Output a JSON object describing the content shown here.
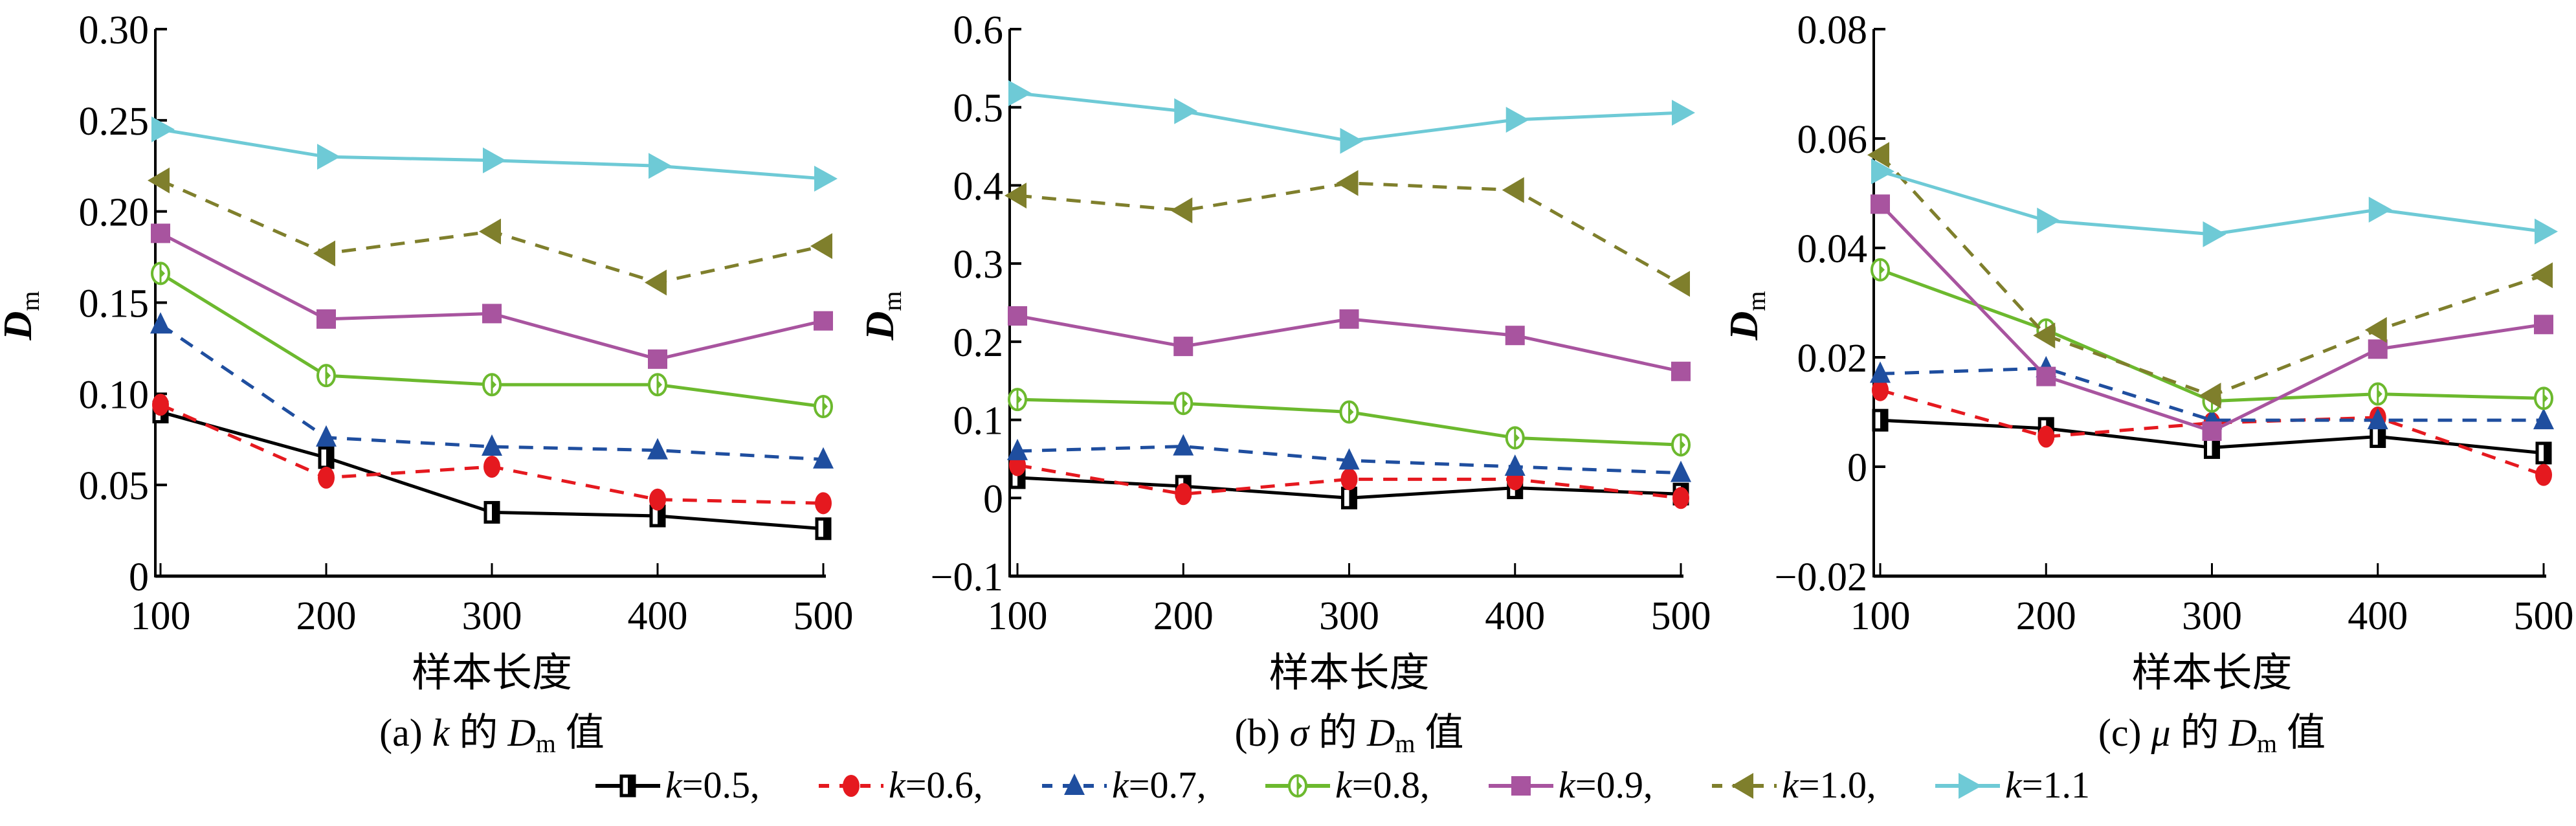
{
  "chart_data": [
    {
      "type": "line",
      "panel": "a",
      "caption_prefix": "(a)",
      "caption_param": "k",
      "caption_mid": "的",
      "caption_D": "D",
      "caption_sub": "m",
      "caption_suffix": "值",
      "xlabel": "样本长度",
      "ylabel_main": "D",
      "ylabel_sub": "m",
      "x": [
        100,
        200,
        300,
        400,
        500
      ],
      "xticks": [
        "100",
        "200",
        "300",
        "400",
        "500"
      ],
      "ylim": [
        0,
        0.3
      ],
      "yticks": [
        0,
        0.05,
        0.1,
        0.15,
        0.2,
        0.25,
        0.3
      ],
      "ytick_labels": [
        "0",
        "0.05",
        "0.10",
        "0.15",
        "0.20",
        "0.25",
        "0.30"
      ],
      "grid": false,
      "series": [
        {
          "name": "k=0.5",
          "values": [
            0.09,
            0.065,
            0.035,
            0.033,
            0.026
          ]
        },
        {
          "name": "k=0.6",
          "values": [
            0.094,
            0.054,
            0.06,
            0.042,
            0.04
          ]
        },
        {
          "name": "k=0.7",
          "values": [
            0.138,
            0.076,
            0.071,
            0.069,
            0.064
          ]
        },
        {
          "name": "k=0.8",
          "values": [
            0.166,
            0.11,
            0.105,
            0.105,
            0.093
          ]
        },
        {
          "name": "k=0.9",
          "values": [
            0.188,
            0.141,
            0.144,
            0.119,
            0.14
          ]
        },
        {
          "name": "k=1.0",
          "values": [
            0.217,
            0.177,
            0.189,
            0.161,
            0.181
          ]
        },
        {
          "name": "k=1.1",
          "values": [
            0.245,
            0.23,
            0.228,
            0.225,
            0.218
          ]
        }
      ]
    },
    {
      "type": "line",
      "panel": "b",
      "caption_prefix": "(b)",
      "caption_param": "σ",
      "caption_mid": "的",
      "caption_D": "D",
      "caption_sub": "m",
      "caption_suffix": "值",
      "xlabel": "样本长度",
      "ylabel_main": "D",
      "ylabel_sub": "m",
      "x": [
        100,
        200,
        300,
        400,
        500
      ],
      "xticks": [
        "100",
        "200",
        "300",
        "400",
        "500"
      ],
      "ylim": [
        -0.1,
        0.6
      ],
      "yticks": [
        -0.1,
        0,
        0.1,
        0.2,
        0.3,
        0.4,
        0.5,
        0.6
      ],
      "ytick_labels": [
        "−0.1",
        "0",
        "0.1",
        "0.2",
        "0.3",
        "0.4",
        "0.5",
        "0.6"
      ],
      "grid": false,
      "series": [
        {
          "name": "k=0.5",
          "values": [
            0.026,
            0.015,
            0.0,
            0.013,
            0.005
          ]
        },
        {
          "name": "k=0.6",
          "values": [
            0.042,
            0.005,
            0.024,
            0.024,
            0.0
          ]
        },
        {
          "name": "k=0.7",
          "values": [
            0.06,
            0.066,
            0.048,
            0.04,
            0.032
          ]
        },
        {
          "name": "k=0.8",
          "values": [
            0.126,
            0.121,
            0.11,
            0.077,
            0.068
          ]
        },
        {
          "name": "k=0.9",
          "values": [
            0.233,
            0.194,
            0.229,
            0.208,
            0.162
          ]
        },
        {
          "name": "k=1.0",
          "values": [
            0.387,
            0.368,
            0.403,
            0.394,
            0.274
          ]
        },
        {
          "name": "k=1.1",
          "values": [
            0.518,
            0.495,
            0.457,
            0.484,
            0.493
          ]
        }
      ]
    },
    {
      "type": "line",
      "panel": "c",
      "caption_prefix": "(c)",
      "caption_param": "μ",
      "caption_mid": "的",
      "caption_D": "D",
      "caption_sub": "m",
      "caption_suffix": "值",
      "xlabel": "样本长度",
      "ylabel_main": "D",
      "ylabel_sub": "m",
      "x": [
        100,
        200,
        300,
        400,
        500
      ],
      "xticks": [
        "100",
        "200",
        "300",
        "400",
        "500"
      ],
      "ylim": [
        -0.02,
        0.08
      ],
      "yticks": [
        -0.02,
        0,
        0.02,
        0.04,
        0.06,
        0.08
      ],
      "ytick_labels": [
        "−0.02",
        "0",
        "0.02",
        "0.04",
        "0.06",
        "0.08"
      ],
      "grid": false,
      "series": [
        {
          "name": "k=0.5",
          "values": [
            0.0085,
            0.007,
            0.0035,
            0.0055,
            0.0025
          ]
        },
        {
          "name": "k=0.6",
          "values": [
            0.014,
            0.0055,
            0.008,
            0.009,
            -0.0015
          ]
        },
        {
          "name": "k=0.7",
          "values": [
            0.017,
            0.018,
            0.0085,
            0.0085,
            0.0085
          ]
        },
        {
          "name": "k=0.8",
          "values": [
            0.036,
            0.025,
            0.012,
            0.0133,
            0.0125
          ]
        },
        {
          "name": "k=0.9",
          "values": [
            0.048,
            0.0165,
            0.0065,
            0.0215,
            0.026
          ]
        },
        {
          "name": "k=1.0",
          "values": [
            0.057,
            0.024,
            0.013,
            0.025,
            0.035
          ]
        },
        {
          "name": "k=1.1",
          "values": [
            0.054,
            0.045,
            0.0425,
            0.047,
            0.043
          ]
        }
      ]
    }
  ],
  "legend": {
    "placement": "bottom-center",
    "items": [
      {
        "param": "k",
        "label": "=0.5,",
        "color": "#000000",
        "marker": "half-square",
        "dash": false
      },
      {
        "param": "k",
        "label": "=0.6,",
        "color": "#E5191F",
        "marker": "circle",
        "dash": true
      },
      {
        "param": "k",
        "label": "=0.7,",
        "color": "#1F4E9F",
        "marker": "triangle-up",
        "dash": true
      },
      {
        "param": "k",
        "label": "=0.8,",
        "color": "#6CB92E",
        "marker": "open-circle",
        "dash": false
      },
      {
        "param": "k",
        "label": "=0.9,",
        "color": "#A8549F",
        "marker": "square",
        "dash": false
      },
      {
        "param": "k",
        "label": "=1.0,",
        "color": "#7F7F2C",
        "marker": "triangle-left",
        "dash": true
      },
      {
        "param": "k",
        "label": "=1.1",
        "color": "#6ECAD6",
        "marker": "triangle-right",
        "dash": false
      }
    ]
  }
}
